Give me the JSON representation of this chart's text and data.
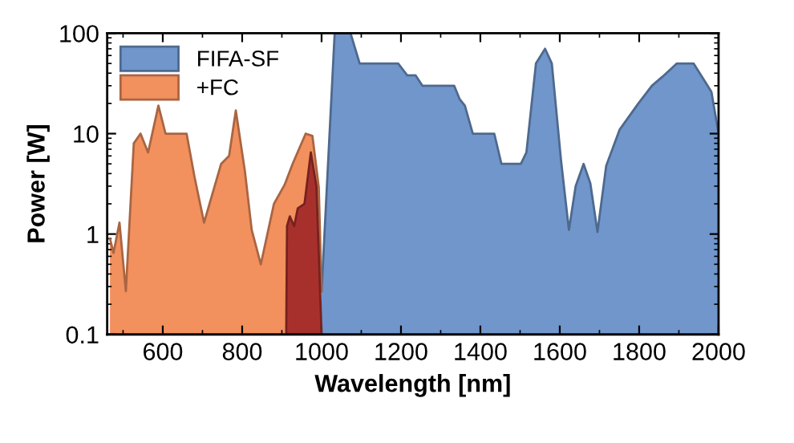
{
  "chart_data": {
    "type": "area",
    "xlabel": "Wavelength [nm]",
    "ylabel": "Power [W]",
    "log": "y",
    "xlim": [
      460,
      2000
    ],
    "ylim": [
      0.1,
      100
    ],
    "xticks": [
      600,
      800,
      1000,
      1200,
      1400,
      1600,
      1800,
      2000
    ],
    "yticks": [
      0.1,
      1,
      10,
      100
    ],
    "grid": false,
    "legend": "top left",
    "series": [
      {
        "name": "FIFA-SF",
        "color": "#7096cb",
        "x": [
          1000,
          1033,
          1073,
          1096,
          1160,
          1193,
          1216,
          1237,
          1254,
          1334,
          1348,
          1361,
          1381,
          1435,
          1453,
          1502,
          1516,
          1540,
          1563,
          1580,
          1603,
          1623,
          1640,
          1660,
          1677,
          1695,
          1717,
          1751,
          1798,
          1832,
          1859,
          1895,
          1937,
          1966,
          1982,
          2000
        ],
        "values": [
          0.27,
          100,
          100,
          50,
          50,
          50,
          38,
          38,
          30,
          30,
          22,
          19,
          10,
          10,
          5,
          5,
          6.5,
          50,
          70,
          50,
          5.5,
          1.1,
          3,
          5,
          3.2,
          1.05,
          4.8,
          11,
          20,
          30,
          37,
          50,
          50,
          33,
          26,
          10
        ]
      },
      {
        "name": "+FC",
        "color": "#f2905e",
        "x": [
          467,
          476,
          491,
          507,
          527,
          544,
          563,
          589,
          607,
          660,
          680,
          704,
          747,
          767,
          784,
          807,
          824,
          847,
          880,
          907,
          927,
          960,
          977,
          993,
          1000
        ],
        "values": [
          0.9,
          0.65,
          1.3,
          0.27,
          8,
          10,
          6.5,
          19,
          10,
          10,
          3.7,
          1.3,
          5,
          6,
          17,
          4.2,
          1.1,
          0.5,
          2,
          3.1,
          5,
          10,
          9.5,
          2.9,
          0.27
        ]
      },
      {
        "color": "#a8302c",
        "x": [
          911,
          913,
          920,
          931,
          940,
          957,
          973,
          987,
          1000
        ],
        "values": [
          0.1,
          1.2,
          1.5,
          1.2,
          1.8,
          2,
          6.5,
          3,
          0.1
        ]
      }
    ]
  }
}
